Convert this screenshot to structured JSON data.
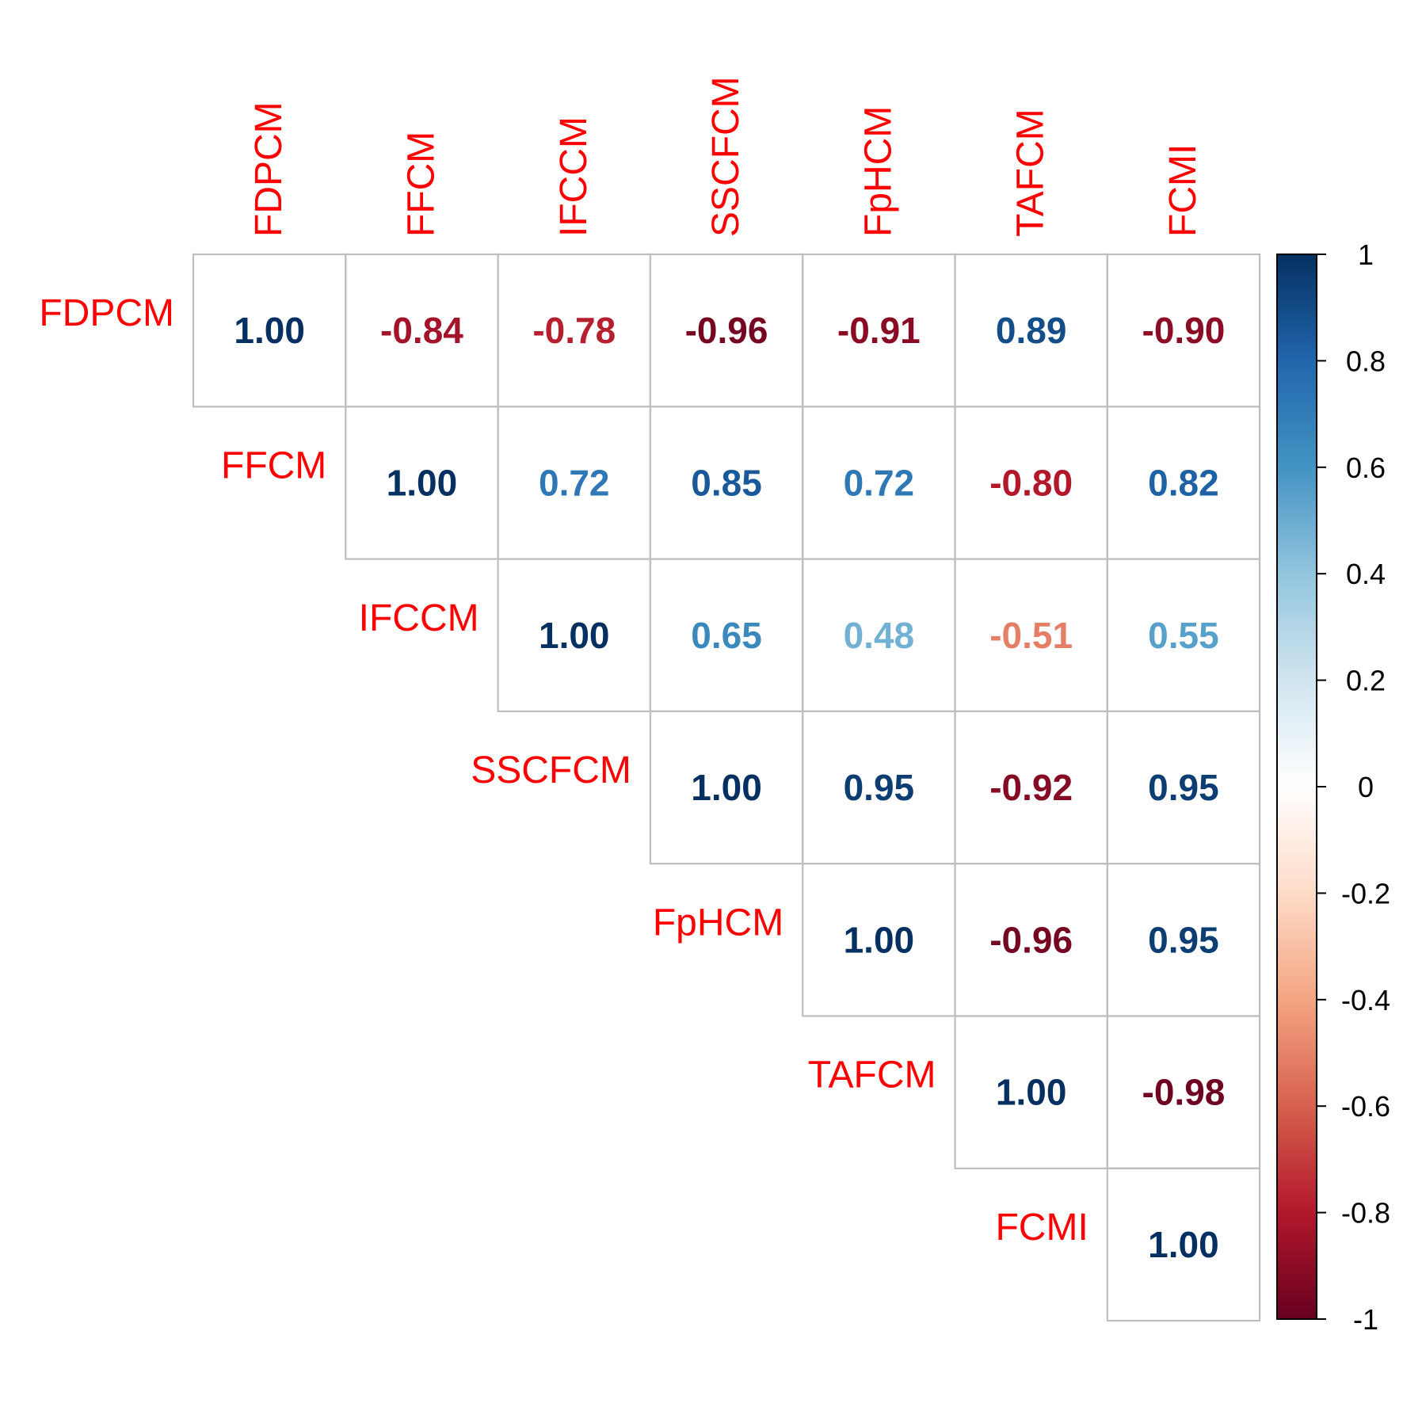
{
  "chart_data": {
    "type": "heatmap",
    "subtype": "upper-triangular correlation matrix (number method)",
    "variables": [
      "FDPCM",
      "FFCM",
      "IFCCM",
      "SSCFCM",
      "FpHCM",
      "TAFCM",
      "FCMI"
    ],
    "matrix": [
      [
        1.0,
        -0.84,
        -0.78,
        -0.96,
        -0.91,
        0.89,
        -0.9
      ],
      [
        null,
        1.0,
        0.72,
        0.85,
        0.72,
        -0.8,
        0.82
      ],
      [
        null,
        null,
        1.0,
        0.65,
        0.48,
        -0.51,
        0.55
      ],
      [
        null,
        null,
        null,
        1.0,
        0.95,
        -0.92,
        0.95
      ],
      [
        null,
        null,
        null,
        null,
        1.0,
        -0.96,
        0.95
      ],
      [
        null,
        null,
        null,
        null,
        null,
        1.0,
        -0.98
      ],
      [
        null,
        null,
        null,
        null,
        null,
        null,
        1.0
      ]
    ],
    "value_labels": [
      [
        "1.00",
        "-0.84",
        "-0.78",
        "-0.96",
        "-0.91",
        "0.89",
        "-0.90"
      ],
      [
        null,
        "1.00",
        "0.72",
        "0.85",
        "0.72",
        "-0.80",
        "0.82"
      ],
      [
        null,
        null,
        "1.00",
        "0.65",
        "0.48",
        "-0.51",
        "0.55"
      ],
      [
        null,
        null,
        null,
        "1.00",
        "0.95",
        "-0.92",
        "0.95"
      ],
      [
        null,
        null,
        null,
        null,
        "1.00",
        "-0.96",
        "0.95"
      ],
      [
        null,
        null,
        null,
        null,
        null,
        "1.00",
        "-0.98"
      ],
      [
        null,
        null,
        null,
        null,
        null,
        null,
        "1.00"
      ]
    ],
    "label_color": "#FF0000",
    "grid_color": "#BEBEBE",
    "colorbar": {
      "placement": "right",
      "range": [
        -1,
        1
      ],
      "tick_values": [
        1,
        0.8,
        0.6,
        0.4,
        0.2,
        0,
        -0.2,
        -0.4,
        -0.6,
        -0.8,
        -1
      ],
      "tick_labels": [
        "1",
        "0.8",
        "0.6",
        "0.4",
        "0.2",
        "0",
        "-0.2",
        "-0.4",
        "-0.6",
        "-0.8",
        "-1"
      ],
      "palette": [
        "#67001F",
        "#B2182B",
        "#D6604D",
        "#F4A582",
        "#FDDBC7",
        "#FFFFFF",
        "#D1E5F0",
        "#92C5DE",
        "#4393C3",
        "#2166AC",
        "#053061"
      ]
    }
  }
}
